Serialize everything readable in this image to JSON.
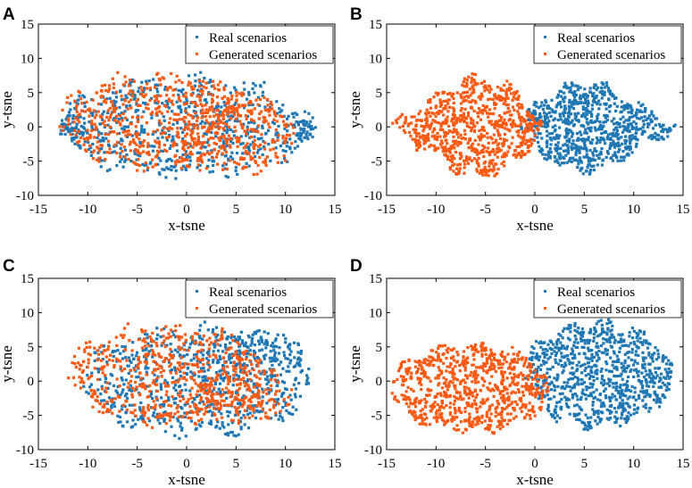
{
  "colors": {
    "real": "#1f77b4",
    "generated": "#ff5a14",
    "axis": "#000000",
    "background": "#ffffff"
  },
  "chart_data": [
    {
      "panel": "A",
      "type": "scatter",
      "xlabel": "x-tsne",
      "ylabel": "y-tsne",
      "xlim": [
        -15,
        15
      ],
      "ylim": [
        -10,
        15
      ],
      "xticks": [
        -15,
        -10,
        -5,
        0,
        5,
        10,
        15
      ],
      "yticks": [
        -10,
        -5,
        0,
        5,
        10,
        15
      ],
      "legend": "top-right",
      "legend_marker": "dot",
      "series": [
        {
          "name": "Real scenarios",
          "color": "#1f77b4",
          "clusters": [
            {
              "center": [
                0,
                0
              ],
              "rx": 12.8,
              "ry": 7.2,
              "n": 650
            },
            {
              "center": [
                -11.5,
                0
              ],
              "rx": 1.3,
              "ry": 1.8,
              "n": 40
            },
            {
              "center": [
                11.8,
                -0.5
              ],
              "rx": 1.3,
              "ry": 1.5,
              "n": 40
            }
          ]
        },
        {
          "name": "Generated scenarios",
          "color": "#ff5a14",
          "clusters": [
            {
              "center": [
                -3,
                1
              ],
              "rx": 10,
              "ry": 6.8,
              "n": 520
            },
            {
              "center": [
                5,
                -1
              ],
              "rx": 6,
              "ry": 6,
              "n": 260
            }
          ]
        }
      ]
    },
    {
      "panel": "B",
      "type": "scatter",
      "xlabel": "x-tsne",
      "ylabel": "y-tsne",
      "xlim": [
        -15,
        15
      ],
      "ylim": [
        -10,
        15
      ],
      "xticks": [
        -15,
        -10,
        -5,
        0,
        5,
        10,
        15
      ],
      "yticks": [
        -10,
        -5,
        0,
        5,
        10,
        15
      ],
      "legend": "top-right",
      "legend_marker": "dot",
      "series": [
        {
          "name": "Real scenarios",
          "color": "#1f77b4",
          "clusters": [
            {
              "center": [
                6.5,
                0
              ],
              "rx": 8,
              "ry": 6.3,
              "shape": "lens-right",
              "n": 800
            }
          ]
        },
        {
          "name": "Generated scenarios",
          "color": "#ff5a14",
          "clusters": [
            {
              "center": [
                -7,
                0
              ],
              "rx": 7.8,
              "ry": 7,
              "shape": "lens-left",
              "n": 800
            }
          ]
        }
      ]
    },
    {
      "panel": "C",
      "type": "scatter",
      "xlabel": "x-tsne",
      "ylabel": "y-tsne",
      "xlim": [
        -15,
        15
      ],
      "ylim": [
        -10,
        15
      ],
      "xticks": [
        -15,
        -10,
        -5,
        0,
        5,
        10,
        15
      ],
      "yticks": [
        -10,
        -5,
        0,
        5,
        10,
        15
      ],
      "legend": "top-right",
      "legend_marker": "dot",
      "series": [
        {
          "name": "Real scenarios",
          "color": "#1f77b4",
          "clusters": [
            {
              "center": [
                1,
                0
              ],
              "rx": 11.5,
              "ry": 7.8,
              "n": 700
            },
            {
              "center": [
                7,
                4
              ],
              "rx": 5,
              "ry": 3.5,
              "n": 120
            }
          ]
        },
        {
          "name": "Generated scenarios",
          "color": "#ff5a14",
          "clusters": [
            {
              "center": [
                -2,
                1
              ],
              "rx": 10,
              "ry": 7.2,
              "n": 550
            },
            {
              "center": [
                6,
                -2
              ],
              "rx": 5,
              "ry": 4,
              "n": 150
            }
          ]
        }
      ]
    },
    {
      "panel": "D",
      "type": "scatter",
      "xlabel": "x-tsne",
      "ylabel": "y-tsne",
      "xlim": [
        -15,
        15
      ],
      "ylim": [
        -10,
        15
      ],
      "xticks": [
        -15,
        -10,
        -5,
        0,
        5,
        10,
        15
      ],
      "yticks": [
        -10,
        -5,
        0,
        5,
        10,
        15
      ],
      "legend": "top-right",
      "legend_marker": "dot",
      "series": [
        {
          "name": "Real scenarios",
          "color": "#1f77b4",
          "clusters": [
            {
              "center": [
                6.5,
                1
              ],
              "rx": 7.5,
              "ry": 7.5,
              "shape": "blob",
              "n": 850
            }
          ]
        },
        {
          "name": "Generated scenarios",
          "color": "#ff5a14",
          "clusters": [
            {
              "center": [
                -6.5,
                -1
              ],
              "rx": 8,
              "ry": 6.2,
              "shape": "blob",
              "n": 800
            }
          ]
        }
      ]
    }
  ]
}
